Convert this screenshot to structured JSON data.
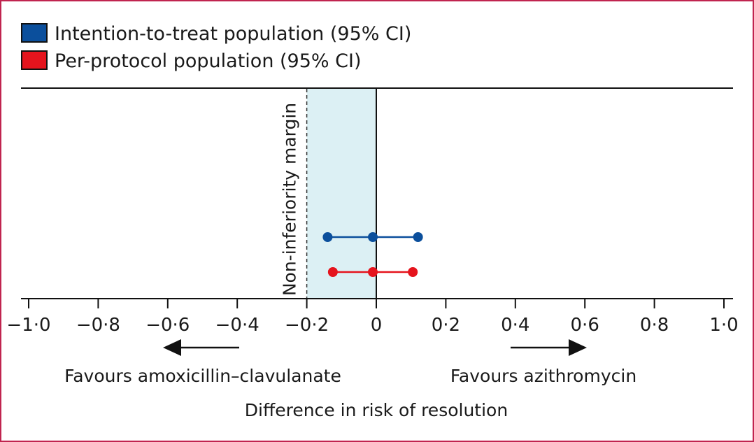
{
  "chart_data": {
    "type": "scatter",
    "title": "",
    "xlabel": "Difference in risk of resolution",
    "ylabel": "",
    "xlim": [
      -1.0,
      1.0
    ],
    "x_ticks": [
      -1.0,
      -0.8,
      -0.6,
      -0.4,
      -0.2,
      0,
      0.2,
      0.4,
      0.6,
      0.8,
      1.0
    ],
    "x_tick_labels": [
      "−1·0",
      "−0·8",
      "−0·6",
      "−0·4",
      "−0·2",
      "0",
      "0·2",
      "0·4",
      "0·6",
      "0·8",
      "1·0"
    ],
    "grid": false,
    "legend_position": "top-left",
    "series": [
      {
        "name": "Intention-to-treat population (95% CI)",
        "color": "#0b4f9c",
        "estimate": -0.01,
        "ci_low": -0.14,
        "ci_high": 0.12
      },
      {
        "name": "Per-protocol population (95% CI)",
        "color": "#e5141d",
        "estimate": -0.01,
        "ci_low": -0.125,
        "ci_high": 0.105
      }
    ],
    "non_inferiority_margin": {
      "label": "Non-inferiority margin",
      "value": -0.2,
      "shade_color": "#dcf0f4"
    },
    "annotations": {
      "favours_left": "Favours amoxicillin–clavulanate",
      "favours_right": "Favours azithromycin"
    }
  }
}
